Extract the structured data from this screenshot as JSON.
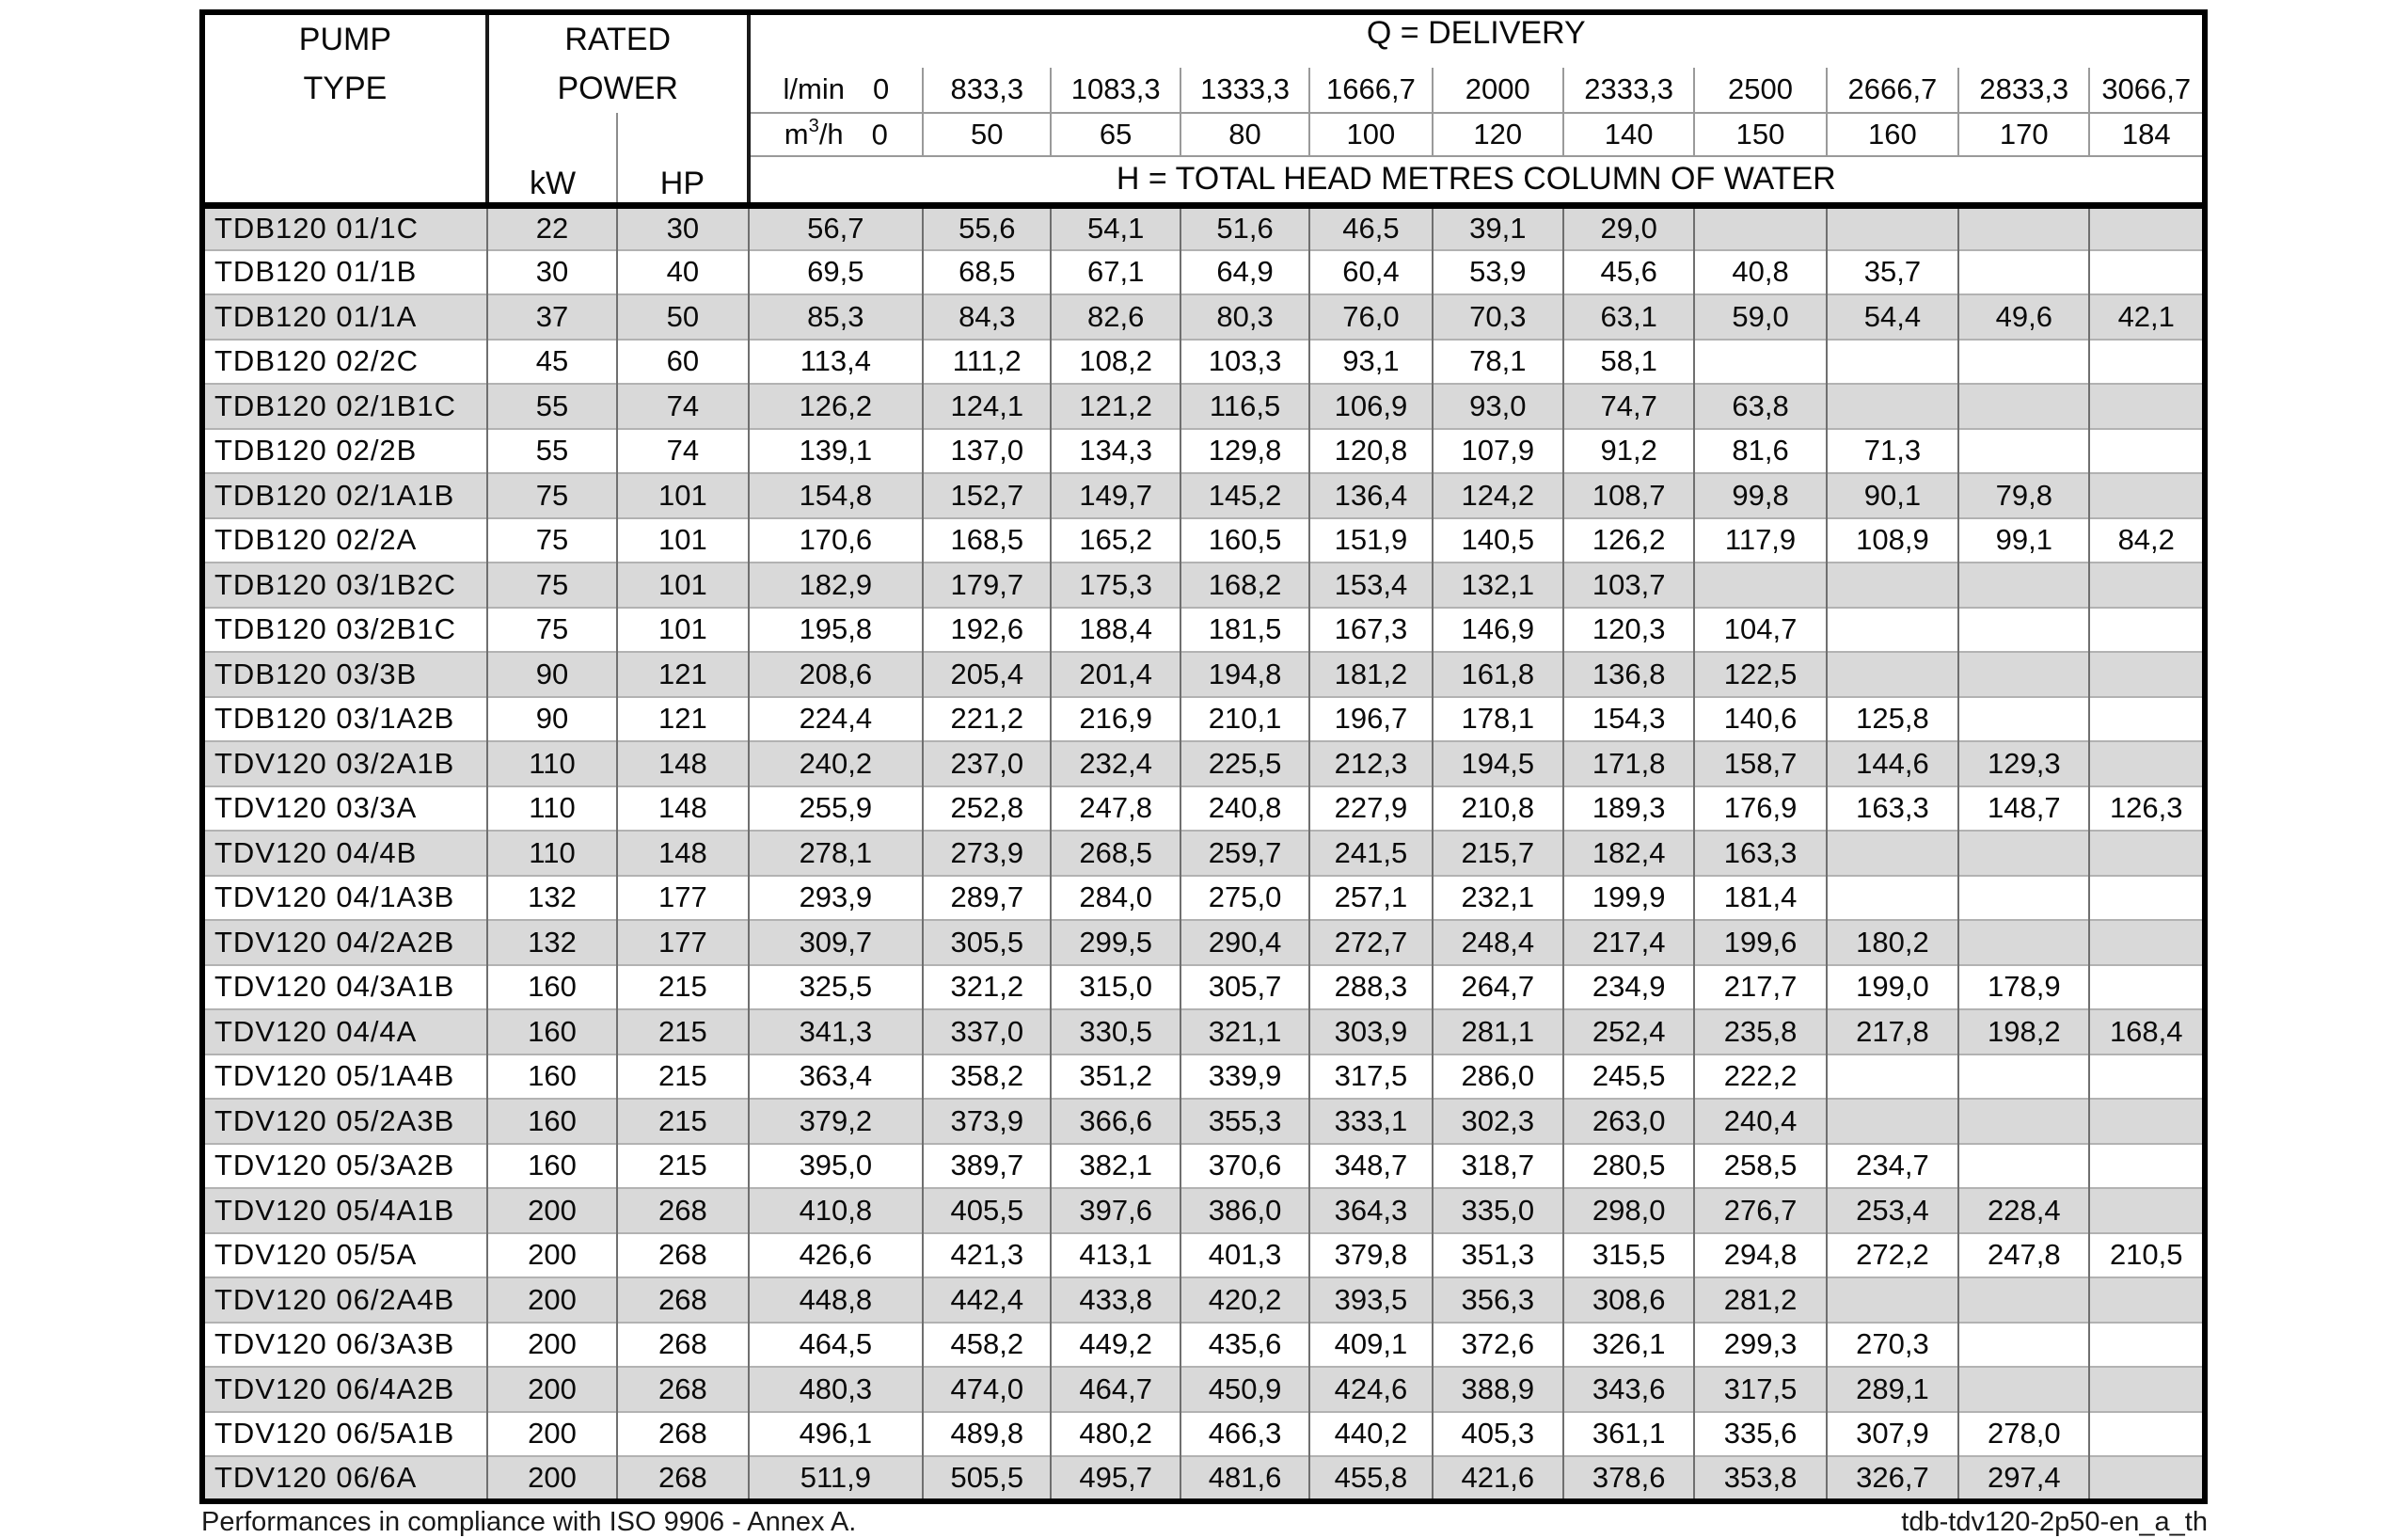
{
  "table": {
    "header": {
      "pump_type": [
        "PUMP",
        "TYPE"
      ],
      "rated_power": [
        "RATED",
        "POWER"
      ],
      "kw_label": "kW",
      "hp_label": "HP",
      "q_delivery_label": "Q = DELIVERY",
      "h_total_label": "H = TOTAL HEAD METRES COLUMN OF WATER",
      "lmin_unit": "l/min",
      "m3h_unit_parts": [
        "m",
        "3",
        "/h"
      ],
      "lmin_values": [
        "0",
        "833,3",
        "1083,3",
        "1333,3",
        "1666,7",
        "2000",
        "2333,3",
        "2500",
        "2666,7",
        "2833,3",
        "3066,7"
      ],
      "m3h_values": [
        "0",
        "50",
        "65",
        "80",
        "100",
        "120",
        "140",
        "150",
        "160",
        "170",
        "184"
      ]
    },
    "rows": [
      {
        "type": "TDB120 01/1C",
        "kw": "22",
        "hp": "30",
        "heads": [
          "56,7",
          "55,6",
          "54,1",
          "51,6",
          "46,5",
          "39,1",
          "29,0",
          "",
          "",
          "",
          ""
        ]
      },
      {
        "type": "TDB120 01/1B",
        "kw": "30",
        "hp": "40",
        "heads": [
          "69,5",
          "68,5",
          "67,1",
          "64,9",
          "60,4",
          "53,9",
          "45,6",
          "40,8",
          "35,7",
          "",
          ""
        ]
      },
      {
        "type": "TDB120 01/1A",
        "kw": "37",
        "hp": "50",
        "heads": [
          "85,3",
          "84,3",
          "82,6",
          "80,3",
          "76,0",
          "70,3",
          "63,1",
          "59,0",
          "54,4",
          "49,6",
          "42,1"
        ]
      },
      {
        "type": "TDB120 02/2C",
        "kw": "45",
        "hp": "60",
        "heads": [
          "113,4",
          "111,2",
          "108,2",
          "103,3",
          "93,1",
          "78,1",
          "58,1",
          "",
          "",
          "",
          ""
        ]
      },
      {
        "type": "TDB120 02/1B1C",
        "kw": "55",
        "hp": "74",
        "heads": [
          "126,2",
          "124,1",
          "121,2",
          "116,5",
          "106,9",
          "93,0",
          "74,7",
          "63,8",
          "",
          "",
          ""
        ]
      },
      {
        "type": "TDB120 02/2B",
        "kw": "55",
        "hp": "74",
        "heads": [
          "139,1",
          "137,0",
          "134,3",
          "129,8",
          "120,8",
          "107,9",
          "91,2",
          "81,6",
          "71,3",
          "",
          ""
        ]
      },
      {
        "type": "TDB120 02/1A1B",
        "kw": "75",
        "hp": "101",
        "heads": [
          "154,8",
          "152,7",
          "149,7",
          "145,2",
          "136,4",
          "124,2",
          "108,7",
          "99,8",
          "90,1",
          "79,8",
          ""
        ]
      },
      {
        "type": "TDB120 02/2A",
        "kw": "75",
        "hp": "101",
        "heads": [
          "170,6",
          "168,5",
          "165,2",
          "160,5",
          "151,9",
          "140,5",
          "126,2",
          "117,9",
          "108,9",
          "99,1",
          "84,2"
        ]
      },
      {
        "type": "TDB120 03/1B2C",
        "kw": "75",
        "hp": "101",
        "heads": [
          "182,9",
          "179,7",
          "175,3",
          "168,2",
          "153,4",
          "132,1",
          "103,7",
          "",
          "",
          "",
          ""
        ]
      },
      {
        "type": "TDB120 03/2B1C",
        "kw": "75",
        "hp": "101",
        "heads": [
          "195,8",
          "192,6",
          "188,4",
          "181,5",
          "167,3",
          "146,9",
          "120,3",
          "104,7",
          "",
          "",
          ""
        ]
      },
      {
        "type": "TDB120 03/3B",
        "kw": "90",
        "hp": "121",
        "heads": [
          "208,6",
          "205,4",
          "201,4",
          "194,8",
          "181,2",
          "161,8",
          "136,8",
          "122,5",
          "",
          "",
          ""
        ]
      },
      {
        "type": "TDB120 03/1A2B",
        "kw": "90",
        "hp": "121",
        "heads": [
          "224,4",
          "221,2",
          "216,9",
          "210,1",
          "196,7",
          "178,1",
          "154,3",
          "140,6",
          "125,8",
          "",
          ""
        ]
      },
      {
        "type": "TDV120 03/2A1B",
        "kw": "110",
        "hp": "148",
        "heads": [
          "240,2",
          "237,0",
          "232,4",
          "225,5",
          "212,3",
          "194,5",
          "171,8",
          "158,7",
          "144,6",
          "129,3",
          ""
        ]
      },
      {
        "type": "TDV120 03/3A",
        "kw": "110",
        "hp": "148",
        "heads": [
          "255,9",
          "252,8",
          "247,8",
          "240,8",
          "227,9",
          "210,8",
          "189,3",
          "176,9",
          "163,3",
          "148,7",
          "126,3"
        ]
      },
      {
        "type": "TDV120 04/4B",
        "kw": "110",
        "hp": "148",
        "heads": [
          "278,1",
          "273,9",
          "268,5",
          "259,7",
          "241,5",
          "215,7",
          "182,4",
          "163,3",
          "",
          "",
          ""
        ]
      },
      {
        "type": "TDV120 04/1A3B",
        "kw": "132",
        "hp": "177",
        "heads": [
          "293,9",
          "289,7",
          "284,0",
          "275,0",
          "257,1",
          "232,1",
          "199,9",
          "181,4",
          "",
          "",
          ""
        ]
      },
      {
        "type": "TDV120 04/2A2B",
        "kw": "132",
        "hp": "177",
        "heads": [
          "309,7",
          "305,5",
          "299,5",
          "290,4",
          "272,7",
          "248,4",
          "217,4",
          "199,6",
          "180,2",
          "",
          ""
        ]
      },
      {
        "type": "TDV120 04/3A1B",
        "kw": "160",
        "hp": "215",
        "heads": [
          "325,5",
          "321,2",
          "315,0",
          "305,7",
          "288,3",
          "264,7",
          "234,9",
          "217,7",
          "199,0",
          "178,9",
          ""
        ]
      },
      {
        "type": "TDV120 04/4A",
        "kw": "160",
        "hp": "215",
        "heads": [
          "341,3",
          "337,0",
          "330,5",
          "321,1",
          "303,9",
          "281,1",
          "252,4",
          "235,8",
          "217,8",
          "198,2",
          "168,4"
        ]
      },
      {
        "type": "TDV120 05/1A4B",
        "kw": "160",
        "hp": "215",
        "heads": [
          "363,4",
          "358,2",
          "351,2",
          "339,9",
          "317,5",
          "286,0",
          "245,5",
          "222,2",
          "",
          "",
          ""
        ]
      },
      {
        "type": "TDV120 05/2A3B",
        "kw": "160",
        "hp": "215",
        "heads": [
          "379,2",
          "373,9",
          "366,6",
          "355,3",
          "333,1",
          "302,3",
          "263,0",
          "240,4",
          "",
          "",
          ""
        ]
      },
      {
        "type": "TDV120 05/3A2B",
        "kw": "160",
        "hp": "215",
        "heads": [
          "395,0",
          "389,7",
          "382,1",
          "370,6",
          "348,7",
          "318,7",
          "280,5",
          "258,5",
          "234,7",
          "",
          ""
        ]
      },
      {
        "type": "TDV120 05/4A1B",
        "kw": "200",
        "hp": "268",
        "heads": [
          "410,8",
          "405,5",
          "397,6",
          "386,0",
          "364,3",
          "335,0",
          "298,0",
          "276,7",
          "253,4",
          "228,4",
          ""
        ]
      },
      {
        "type": "TDV120 05/5A",
        "kw": "200",
        "hp": "268",
        "heads": [
          "426,6",
          "421,3",
          "413,1",
          "401,3",
          "379,8",
          "351,3",
          "315,5",
          "294,8",
          "272,2",
          "247,8",
          "210,5"
        ]
      },
      {
        "type": "TDV120 06/2A4B",
        "kw": "200",
        "hp": "268",
        "heads": [
          "448,8",
          "442,4",
          "433,8",
          "420,2",
          "393,5",
          "356,3",
          "308,6",
          "281,2",
          "",
          "",
          ""
        ]
      },
      {
        "type": "TDV120 06/3A3B",
        "kw": "200",
        "hp": "268",
        "heads": [
          "464,5",
          "458,2",
          "449,2",
          "435,6",
          "409,1",
          "372,6",
          "326,1",
          "299,3",
          "270,3",
          "",
          ""
        ]
      },
      {
        "type": "TDV120 06/4A2B",
        "kw": "200",
        "hp": "268",
        "heads": [
          "480,3",
          "474,0",
          "464,7",
          "450,9",
          "424,6",
          "388,9",
          "343,6",
          "317,5",
          "289,1",
          "",
          ""
        ]
      },
      {
        "type": "TDV120 06/5A1B",
        "kw": "200",
        "hp": "268",
        "heads": [
          "496,1",
          "489,8",
          "480,2",
          "466,3",
          "440,2",
          "405,3",
          "361,1",
          "335,6",
          "307,9",
          "278,0",
          ""
        ]
      },
      {
        "type": "TDV120 06/6A",
        "kw": "200",
        "hp": "268",
        "heads": [
          "511,9",
          "505,5",
          "495,7",
          "481,6",
          "455,8",
          "421,6",
          "378,6",
          "353,8",
          "326,7",
          "297,4",
          ""
        ]
      }
    ]
  },
  "footer": {
    "note": "Performances in compliance with ISO 9906 - Annex A.",
    "doc_code": "tdb-tdv120-2p50-en_a_th"
  },
  "colors": {
    "stripe_gray": "#d9d9d9",
    "outer_border": "#000000",
    "grid_vertical": "#6f6f6f",
    "grid_horizontal": "#b2b2b2"
  }
}
